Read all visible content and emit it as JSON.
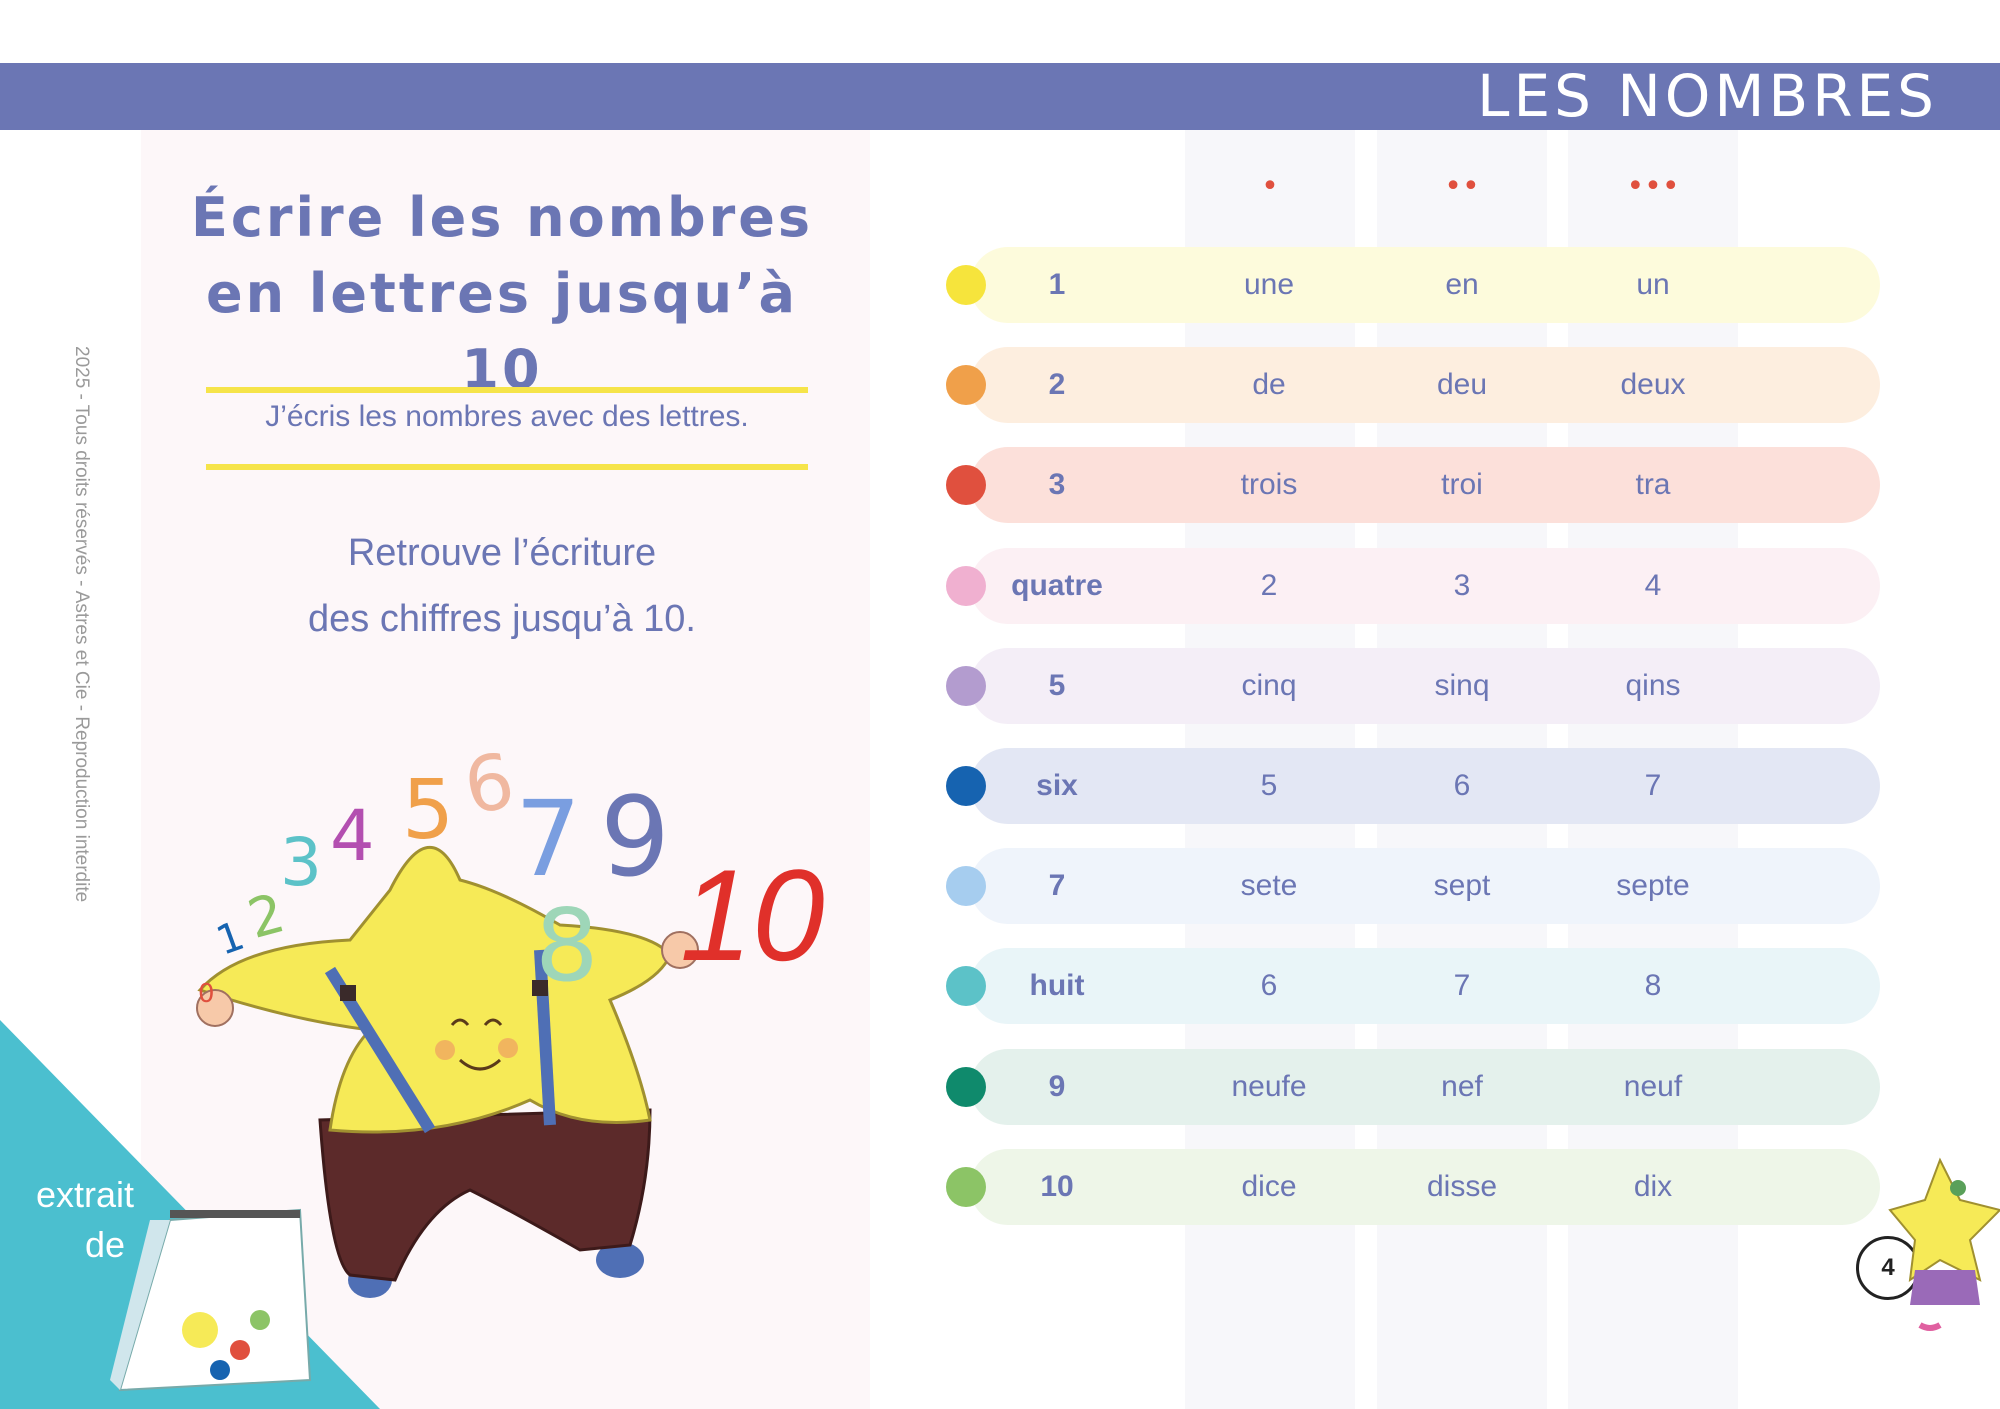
{
  "header": {
    "title": "LES NOMBRES"
  },
  "copyright": "2025 - Tous droits réservés - Astres et Cie - Reproduction interdite",
  "page": {
    "title_line1": "Écrire les nombres",
    "title_line2": "en lettres jusqu’à 10",
    "subtitle": "J’écris les nombres avec des lettres.",
    "instruction_line1": "Retrouve l’écriture",
    "instruction_line2": "des chiffres jusqu’à 10."
  },
  "illustration": {
    "digits": [
      "0",
      "1",
      "2",
      "3",
      "4",
      "5",
      "6",
      "7",
      "8",
      "9",
      "10"
    ]
  },
  "columns": [
    "•",
    "••",
    "•••"
  ],
  "rows": [
    {
      "label": "1",
      "cells": [
        "une",
        "en",
        "un"
      ],
      "dot": "#f6e43c",
      "bg": "#fdfbdc"
    },
    {
      "label": "2",
      "cells": [
        "de",
        "deu",
        "deux"
      ],
      "dot": "#f0a04a",
      "bg": "#fdeedf"
    },
    {
      "label": "3",
      "cells": [
        "trois",
        "troi",
        "tra"
      ],
      "dot": "#e0503e",
      "bg": "#fce0da"
    },
    {
      "label": "quatre",
      "cells": [
        "2",
        "3",
        "4"
      ],
      "dot": "#f0b0d0",
      "bg": "#fcf0f4"
    },
    {
      "label": "5",
      "cells": [
        "cinq",
        "sinq",
        "qins"
      ],
      "dot": "#b39ccf",
      "bg": "#f4eef7"
    },
    {
      "label": "six",
      "cells": [
        "5",
        "6",
        "7"
      ],
      "dot": "#1663b0",
      "bg": "#e3e7f4"
    },
    {
      "label": "7",
      "cells": [
        "sete",
        "sept",
        "septe"
      ],
      "dot": "#a6cdef",
      "bg": "#eff4fb"
    },
    {
      "label": "huit",
      "cells": [
        "6",
        "7",
        "8"
      ],
      "dot": "#5cc2c8",
      "bg": "#e9f5f8"
    },
    {
      "label": "9",
      "cells": [
        "neufe",
        "nef",
        "neuf"
      ],
      "dot": "#0f8a6c",
      "bg": "#e4f1ec"
    },
    {
      "label": "10",
      "cells": [
        "dice",
        "disse",
        "dix"
      ],
      "dot": "#8cc466",
      "bg": "#eef6e8"
    }
  ],
  "page_number": "4",
  "promo": {
    "line1": "extrait",
    "line2": "de"
  }
}
